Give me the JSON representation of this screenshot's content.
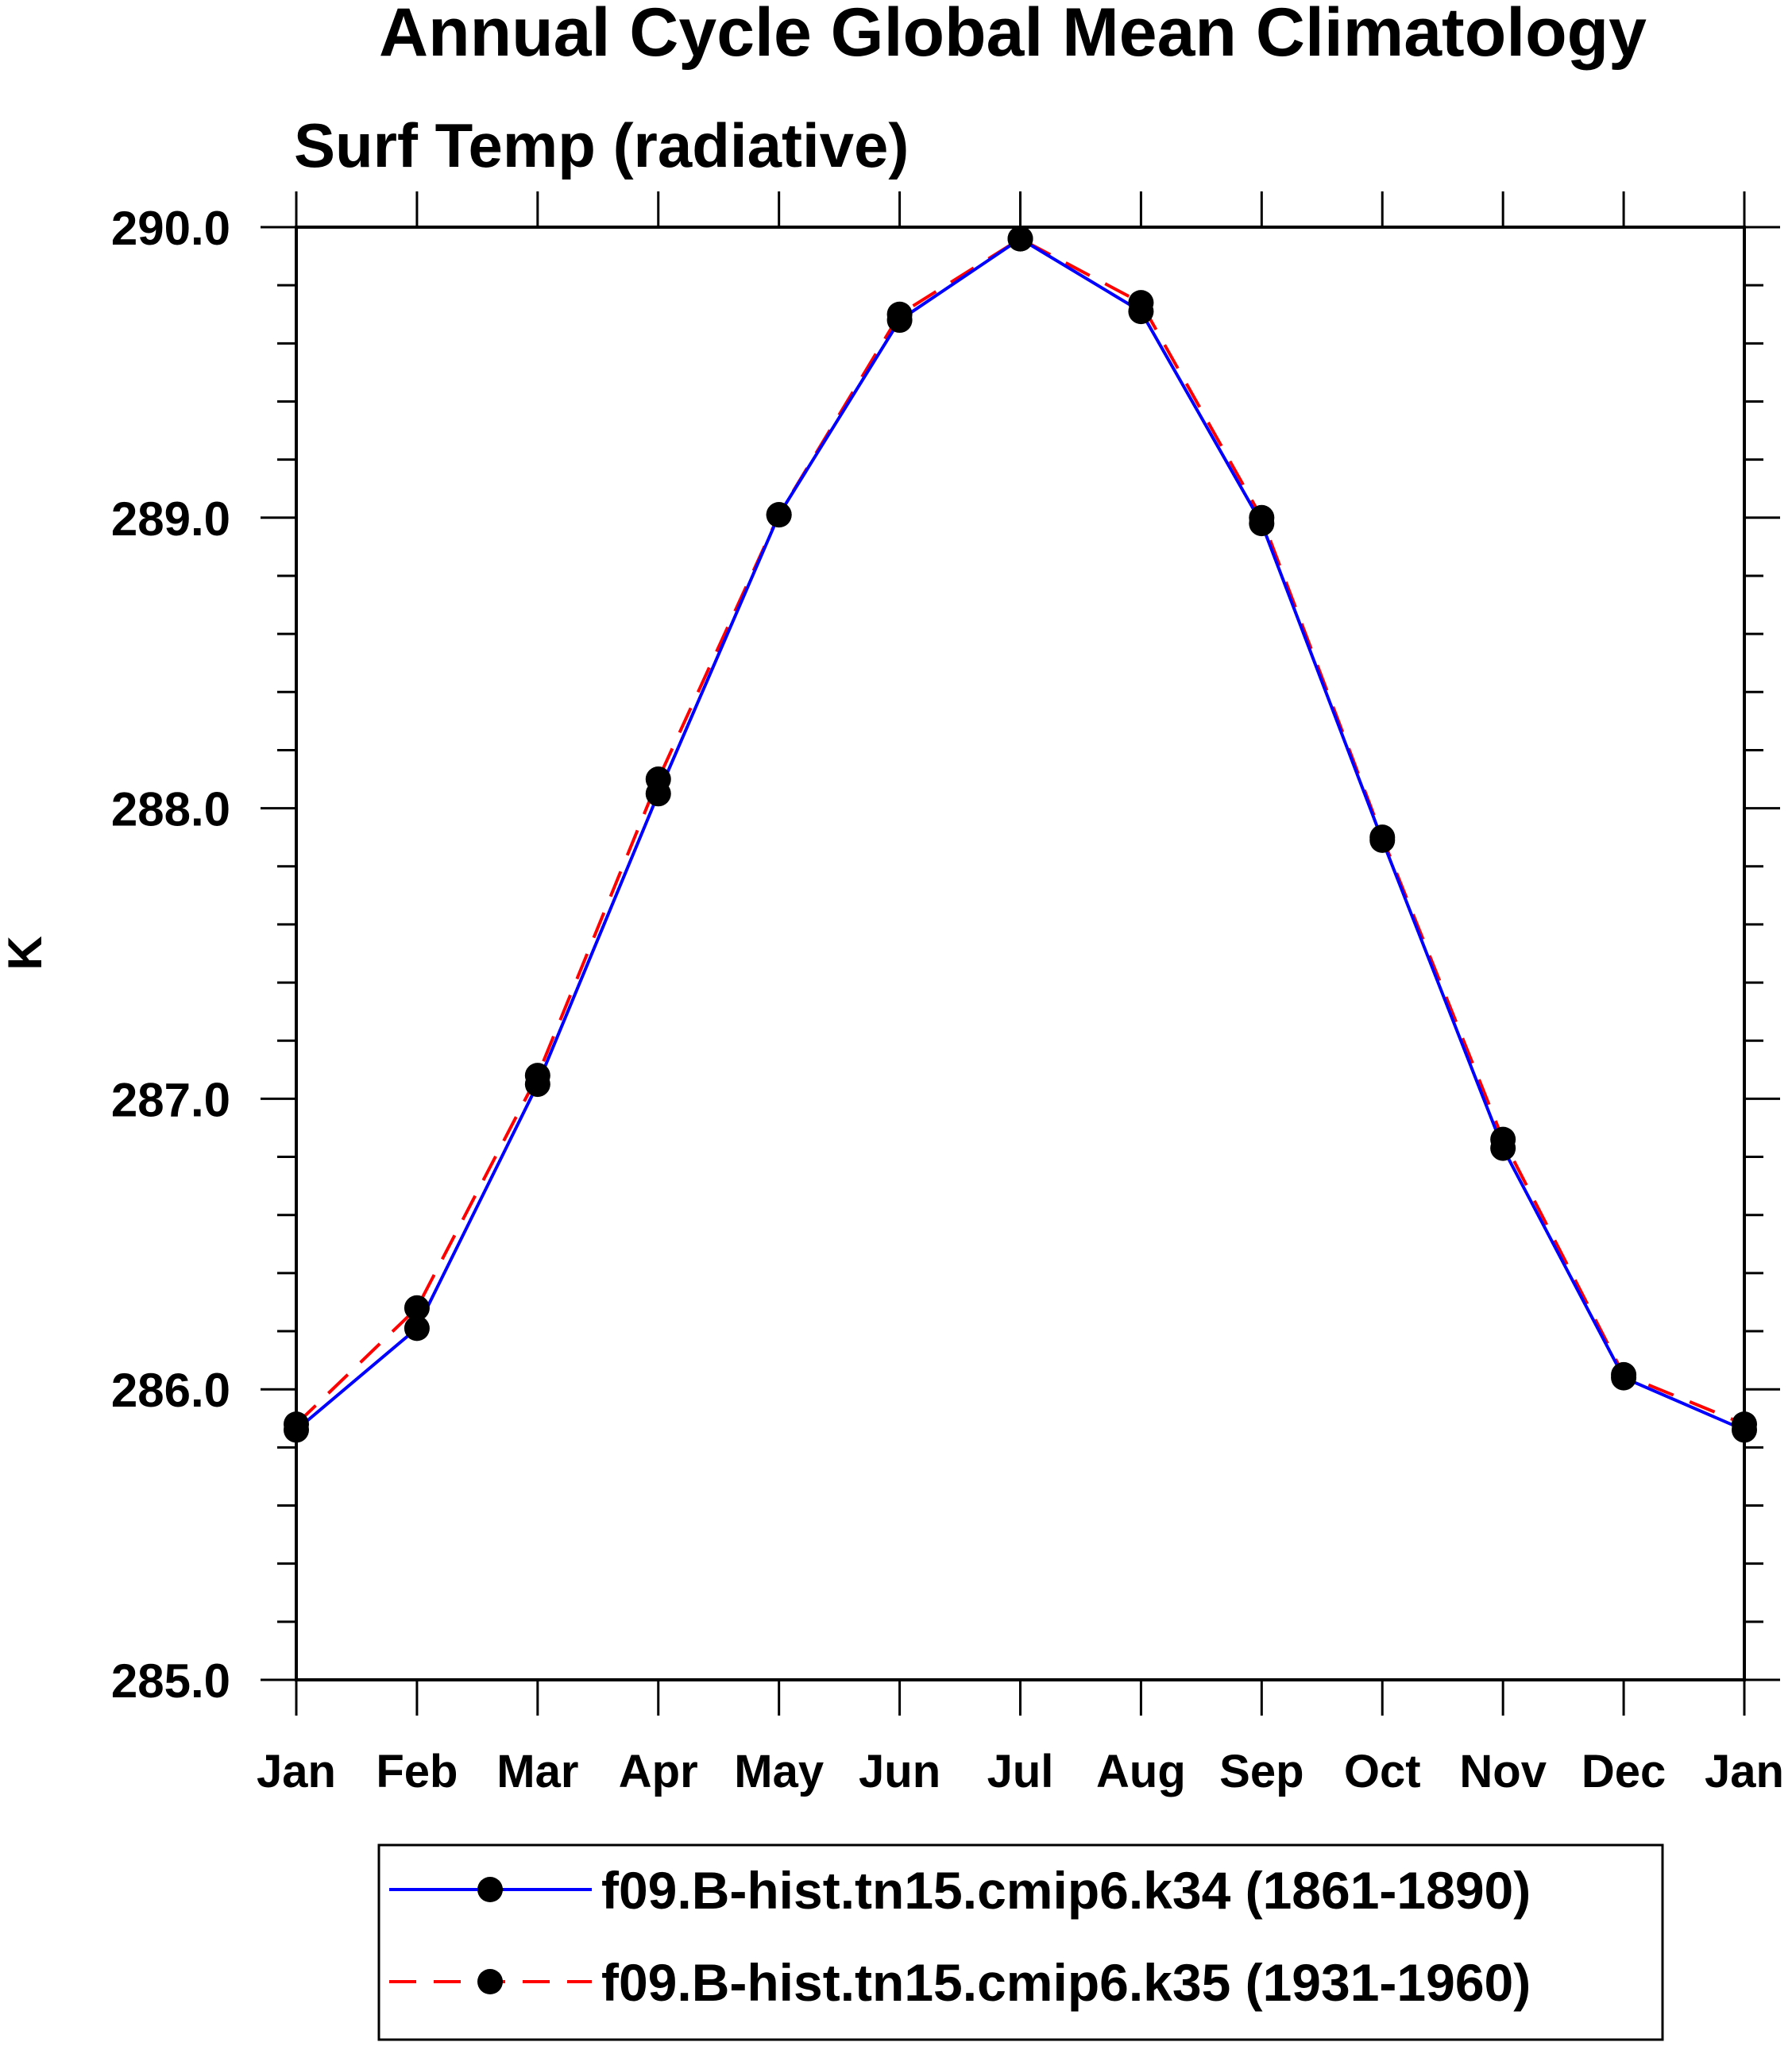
{
  "chart_data": {
    "type": "line",
    "title": "Annual Cycle Global Mean Climatology",
    "subtitle": "Surf Temp (radiative)",
    "xlabel": "",
    "ylabel": "K",
    "categories": [
      "Jan",
      "Feb",
      "Mar",
      "Apr",
      "May",
      "Jun",
      "Jul",
      "Aug",
      "Sep",
      "Oct",
      "Nov",
      "Dec",
      "Jan"
    ],
    "ylim": [
      285.0,
      290.0
    ],
    "yticks": [
      "285.0",
      "286.0",
      "287.0",
      "288.0",
      "289.0",
      "290.0"
    ],
    "grid": false,
    "legend_position": "bottom",
    "series": [
      {
        "name": "f09.B-hist.tn15.cmip6.k34 (1861-1890)",
        "color": "#0000ff",
        "line_style": "solid",
        "marker": "filled-circle",
        "values": [
          285.86,
          286.21,
          287.05,
          288.05,
          289.01,
          289.68,
          289.96,
          289.71,
          288.98,
          287.89,
          286.83,
          286.04,
          285.86
        ]
      },
      {
        "name": "f09.B-hist.tn15.cmip6.k35 (1931-1960)",
        "color": "#ff0000",
        "line_style": "dashed",
        "marker": "filled-circle",
        "values": [
          285.88,
          286.28,
          287.08,
          288.1,
          289.01,
          289.7,
          289.96,
          289.74,
          289.0,
          287.9,
          286.86,
          286.05,
          285.88
        ]
      }
    ]
  }
}
